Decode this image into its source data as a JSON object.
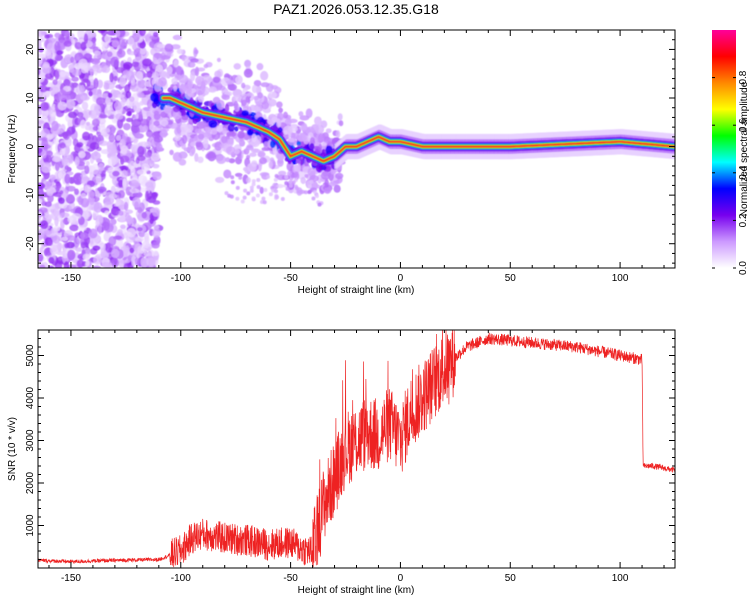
{
  "title": "PAZ1.2026.053.12.35.G18",
  "chart_data": [
    {
      "type": "heatmap",
      "name": "spectrogram",
      "xlabel": "Height of straight line (km)",
      "ylabel": "Frequency (Hz)",
      "xlim": [
        -165,
        125
      ],
      "ylim": [
        -25,
        24
      ],
      "xticks": [
        -150,
        -100,
        -50,
        0,
        50,
        100
      ],
      "yticks": [
        -20,
        -10,
        0,
        10,
        20
      ],
      "ridge": [
        {
          "x": -105,
          "y": 10
        },
        {
          "x": -100,
          "y": 9
        },
        {
          "x": -95,
          "y": 8
        },
        {
          "x": -90,
          "y": 7
        },
        {
          "x": -85,
          "y": 6.5
        },
        {
          "x": -80,
          "y": 6
        },
        {
          "x": -75,
          "y": 5.5
        },
        {
          "x": -70,
          "y": 5
        },
        {
          "x": -65,
          "y": 4
        },
        {
          "x": -60,
          "y": 3
        },
        {
          "x": -55,
          "y": 1.5
        },
        {
          "x": -50,
          "y": -2
        },
        {
          "x": -45,
          "y": -1
        },
        {
          "x": -40,
          "y": -2
        },
        {
          "x": -35,
          "y": -3
        },
        {
          "x": -30,
          "y": -2
        },
        {
          "x": -25,
          "y": 0
        },
        {
          "x": -20,
          "y": 0
        },
        {
          "x": -15,
          "y": 1
        },
        {
          "x": -10,
          "y": 2
        },
        {
          "x": -5,
          "y": 1
        },
        {
          "x": 0,
          "y": 1
        },
        {
          "x": 10,
          "y": 0
        },
        {
          "x": 30,
          "y": 0
        },
        {
          "x": 50,
          "y": 0
        },
        {
          "x": 75,
          "y": 0.5
        },
        {
          "x": 100,
          "y": 1
        },
        {
          "x": 125,
          "y": 0
        }
      ],
      "colorbar": {
        "label": "Normalized spectral amplitude",
        "range": [
          0,
          1
        ],
        "ticks": [
          "0.0",
          "0.2",
          "0.4",
          "0.6",
          "0.8"
        ],
        "colors": [
          "#ffffff",
          "#cc99ff",
          "#7700ee",
          "#0000ff",
          "#00ffff",
          "#00ff00",
          "#ffff00",
          "#ff8800",
          "#ff0000",
          "#ff0099"
        ]
      }
    },
    {
      "type": "line",
      "name": "snr",
      "xlabel": "Height of straight line (km)",
      "ylabel": "SNR (10 * v/v)",
      "xlim": [
        -165,
        125
      ],
      "ylim": [
        0,
        5600
      ],
      "xticks": [
        -150,
        -100,
        -50,
        0,
        50,
        100
      ],
      "yticks": [
        1000,
        2000,
        3000,
        4000,
        5000
      ],
      "color": "#ee2222",
      "series": [
        {
          "name": "SNR",
          "x": [
            -165,
            -150,
            -130,
            -110,
            -100,
            -95,
            -90,
            -80,
            -70,
            -60,
            -50,
            -45,
            -40,
            -35,
            -30,
            -25,
            -20,
            -15,
            -10,
            -5,
            0,
            5,
            10,
            20,
            30,
            40,
            50,
            60,
            70,
            80,
            90,
            100,
            105,
            110,
            110.5,
            115,
            125
          ],
          "y": [
            180,
            150,
            180,
            200,
            400,
            700,
            800,
            700,
            650,
            550,
            600,
            450,
            380,
            1500,
            2100,
            2800,
            3000,
            3200,
            3100,
            3400,
            3000,
            3700,
            4000,
            4700,
            5200,
            5400,
            5350,
            5300,
            5250,
            5200,
            5100,
            5000,
            4950,
            4900,
            2400,
            2400,
            2300
          ]
        }
      ]
    }
  ]
}
